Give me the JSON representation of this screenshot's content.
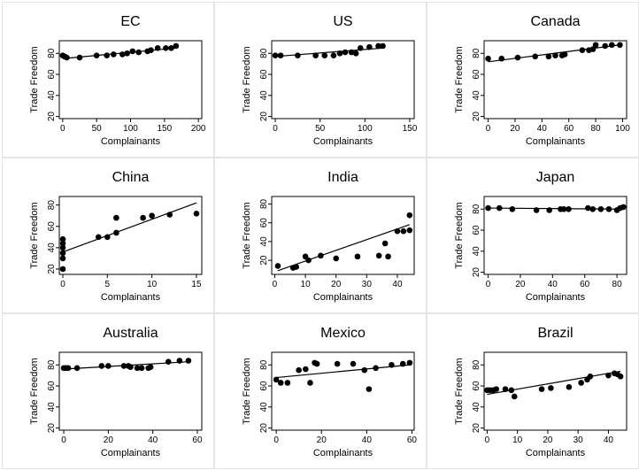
{
  "chart_data": [
    {
      "type": "scatter",
      "title": "EC",
      "xlabel": "Complainants",
      "ylabel": "Trade Freedom",
      "xlim": [
        -5,
        205
      ],
      "ylim": [
        18,
        92
      ],
      "xticks": [
        0,
        50,
        100,
        150,
        200
      ],
      "yticks": [
        20,
        40,
        60,
        80
      ],
      "points": [
        [
          0,
          78
        ],
        [
          3,
          77
        ],
        [
          6,
          76
        ],
        [
          25,
          76
        ],
        [
          50,
          78
        ],
        [
          65,
          78
        ],
        [
          75,
          79
        ],
        [
          88,
          79
        ],
        [
          95,
          80
        ],
        [
          103,
          82
        ],
        [
          112,
          81
        ],
        [
          125,
          82
        ],
        [
          130,
          83
        ],
        [
          140,
          85
        ],
        [
          152,
          85
        ],
        [
          160,
          85
        ],
        [
          167,
          87
        ]
      ],
      "fit": [
        [
          0,
          75
        ],
        [
          167,
          85
        ]
      ]
    },
    {
      "type": "scatter",
      "title": "US",
      "xlabel": "Complainants",
      "ylabel": "Trade Freedom",
      "xlim": [
        -4,
        155
      ],
      "ylim": [
        18,
        92
      ],
      "xticks": [
        0,
        50,
        100,
        150
      ],
      "yticks": [
        20,
        40,
        60,
        80
      ],
      "points": [
        [
          0,
          78
        ],
        [
          6,
          78
        ],
        [
          25,
          78
        ],
        [
          45,
          78
        ],
        [
          55,
          78
        ],
        [
          65,
          78
        ],
        [
          72,
          80
        ],
        [
          78,
          81
        ],
        [
          85,
          81
        ],
        [
          90,
          80
        ],
        [
          95,
          85
        ],
        [
          105,
          86
        ],
        [
          115,
          87
        ],
        [
          120,
          87
        ]
      ],
      "fit": [
        [
          0,
          77
        ],
        [
          120,
          85
        ]
      ]
    },
    {
      "type": "scatter",
      "title": "Canada",
      "xlabel": "Complainants",
      "ylabel": "Trade Freedom",
      "xlim": [
        -3,
        103
      ],
      "ylim": [
        18,
        92
      ],
      "xticks": [
        0,
        20,
        40,
        60,
        80,
        100
      ],
      "yticks": [
        20,
        40,
        60,
        80
      ],
      "points": [
        [
          0,
          75
        ],
        [
          10,
          75
        ],
        [
          22,
          76
        ],
        [
          35,
          77
        ],
        [
          45,
          77
        ],
        [
          50,
          78
        ],
        [
          55,
          78
        ],
        [
          57,
          79
        ],
        [
          70,
          83
        ],
        [
          75,
          83
        ],
        [
          78,
          84
        ],
        [
          80,
          88
        ],
        [
          87,
          87
        ],
        [
          92,
          88
        ],
        [
          98,
          88
        ]
      ],
      "fit": [
        [
          0,
          72
        ],
        [
          98,
          88
        ]
      ]
    },
    {
      "type": "scatter",
      "title": "China",
      "xlabel": "Complainants",
      "ylabel": "Trade Freedom",
      "xlim": [
        -0.4,
        15.6
      ],
      "ylim": [
        15,
        88
      ],
      "xticks": [
        0,
        5,
        10,
        15
      ],
      "yticks": [
        20,
        40,
        60,
        80
      ],
      "points": [
        [
          0,
          20
        ],
        [
          0,
          30
        ],
        [
          0,
          35
        ],
        [
          0,
          40
        ],
        [
          0,
          44
        ],
        [
          0,
          48
        ],
        [
          4,
          50
        ],
        [
          5,
          50
        ],
        [
          6,
          68
        ],
        [
          6,
          54
        ],
        [
          9,
          68
        ],
        [
          10,
          70
        ],
        [
          12,
          71
        ],
        [
          15,
          72
        ]
      ],
      "fit": [
        [
          0,
          36
        ],
        [
          15,
          82
        ]
      ]
    },
    {
      "type": "scatter",
      "title": "India",
      "xlabel": "Complainants",
      "ylabel": "Trade Freedom",
      "xlim": [
        -1,
        45.5
      ],
      "ylim": [
        5,
        88
      ],
      "xticks": [
        0,
        10,
        20,
        30,
        40
      ],
      "yticks": [
        20,
        40,
        60,
        80
      ],
      "points": [
        [
          1,
          14
        ],
        [
          6,
          12
        ],
        [
          7,
          13
        ],
        [
          10,
          24
        ],
        [
          11,
          20
        ],
        [
          15,
          25
        ],
        [
          20,
          22
        ],
        [
          27,
          24
        ],
        [
          34,
          25
        ],
        [
          36,
          38
        ],
        [
          37,
          24
        ],
        [
          40,
          51
        ],
        [
          42,
          51
        ],
        [
          44,
          52
        ],
        [
          44,
          68
        ]
      ],
      "fit": [
        [
          1,
          9
        ],
        [
          44,
          58
        ]
      ]
    },
    {
      "type": "scatter",
      "title": "Japan",
      "xlabel": "Complainants",
      "ylabel": "Trade Freedom",
      "xlim": [
        -2.5,
        86
      ],
      "ylim": [
        18,
        92
      ],
      "xticks": [
        0,
        20,
        40,
        60,
        80
      ],
      "yticks": [
        20,
        40,
        60,
        80
      ],
      "points": [
        [
          0,
          81
        ],
        [
          7,
          81
        ],
        [
          15,
          80
        ],
        [
          30,
          79
        ],
        [
          38,
          79
        ],
        [
          45,
          80
        ],
        [
          47,
          80
        ],
        [
          50,
          80
        ],
        [
          62,
          81
        ],
        [
          65,
          80
        ],
        [
          70,
          80
        ],
        [
          75,
          80
        ],
        [
          80,
          79
        ],
        [
          82,
          81
        ],
        [
          84,
          82
        ]
      ],
      "fit": [
        [
          0,
          81
        ],
        [
          84,
          80
        ]
      ]
    },
    {
      "type": "scatter",
      "title": "Australia",
      "xlabel": "Complainants",
      "ylabel": "Trade Freedom",
      "xlim": [
        -2,
        62
      ],
      "ylim": [
        18,
        92
      ],
      "xticks": [
        0,
        20,
        40,
        60
      ],
      "yticks": [
        20,
        40,
        60,
        80
      ],
      "points": [
        [
          0,
          77
        ],
        [
          1,
          77
        ],
        [
          2,
          77
        ],
        [
          6,
          77
        ],
        [
          17,
          79
        ],
        [
          20,
          79
        ],
        [
          27,
          79
        ],
        [
          29,
          79
        ],
        [
          30,
          78
        ],
        [
          33,
          77
        ],
        [
          35,
          77
        ],
        [
          38,
          77
        ],
        [
          39,
          78
        ],
        [
          47,
          83
        ],
        [
          52,
          84
        ],
        [
          56,
          84
        ]
      ],
      "fit": [
        [
          0,
          76
        ],
        [
          56,
          83
        ]
      ]
    },
    {
      "type": "scatter",
      "title": "Mexico",
      "xlabel": "Complainants",
      "ylabel": "Trade Freedom",
      "xlim": [
        -2,
        61
      ],
      "ylim": [
        18,
        92
      ],
      "xticks": [
        0,
        20,
        40,
        60
      ],
      "yticks": [
        20,
        40,
        60,
        80
      ],
      "points": [
        [
          0,
          66
        ],
        [
          2,
          63
        ],
        [
          5,
          63
        ],
        [
          10,
          75
        ],
        [
          13,
          76
        ],
        [
          15,
          63
        ],
        [
          17,
          82
        ],
        [
          18,
          81
        ],
        [
          27,
          81
        ],
        [
          34,
          81
        ],
        [
          39,
          75
        ],
        [
          41,
          57
        ],
        [
          44,
          77
        ],
        [
          51,
          80
        ],
        [
          56,
          81
        ],
        [
          59,
          82
        ]
      ],
      "fit": [
        [
          0,
          68
        ],
        [
          59,
          80
        ]
      ]
    },
    {
      "type": "scatter",
      "title": "Brazil",
      "xlabel": "Complainants",
      "ylabel": "Trade Freedom",
      "xlim": [
        -1,
        46
      ],
      "ylim": [
        18,
        92
      ],
      "xticks": [
        0,
        10,
        20,
        30,
        40
      ],
      "yticks": [
        20,
        40,
        60,
        80
      ],
      "points": [
        [
          0,
          56
        ],
        [
          1,
          56
        ],
        [
          2,
          56
        ],
        [
          3,
          57
        ],
        [
          6,
          57
        ],
        [
          8,
          56
        ],
        [
          9,
          50
        ],
        [
          18,
          57
        ],
        [
          21,
          58
        ],
        [
          27,
          59
        ],
        [
          31,
          63
        ],
        [
          33,
          66
        ],
        [
          34,
          69
        ],
        [
          40,
          70
        ],
        [
          42,
          72
        ],
        [
          43,
          71
        ],
        [
          44,
          69
        ]
      ],
      "fit": [
        [
          0,
          52
        ],
        [
          44,
          74
        ]
      ]
    }
  ]
}
